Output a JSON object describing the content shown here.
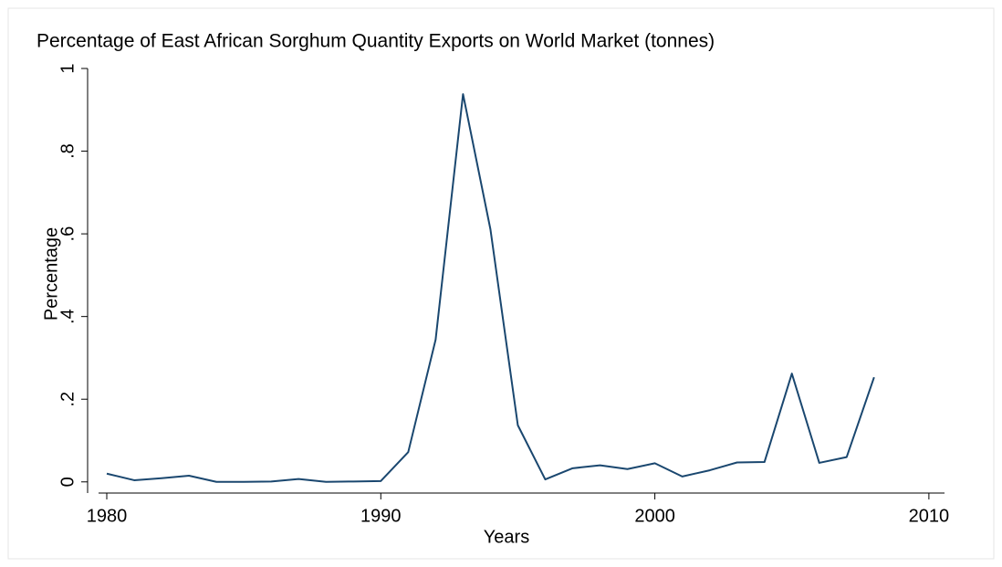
{
  "chart_data": {
    "type": "line",
    "title": "Percentage of East African Sorghum Quantity  Exports on World Market (tonnes)",
    "x_label": "Years",
    "y_label": "Percentage",
    "x": [
      1980,
      1981,
      1982,
      1983,
      1984,
      1985,
      1986,
      1987,
      1988,
      1989,
      1990,
      1991,
      1992,
      1993,
      1994,
      1995,
      1996,
      1997,
      1998,
      1999,
      2000,
      2001,
      2002,
      2003,
      2004,
      2005,
      2006,
      2007,
      2008
    ],
    "series": [
      {
        "name": "Percentage",
        "color": "#1a476f",
        "values": [
          0.02,
          0.004,
          0.009,
          0.015,
          0.0,
          0.0,
          0.001,
          0.007,
          0.0,
          0.001,
          0.002,
          0.072,
          0.344,
          0.938,
          0.611,
          0.137,
          0.006,
          0.033,
          0.04,
          0.031,
          0.045,
          0.013,
          0.028,
          0.047,
          0.048,
          0.262,
          0.046,
          0.06,
          0.253
        ]
      }
    ],
    "xlim": [
      1979.7,
      2010.57
    ],
    "ylim": [
      -0.027,
      1.0
    ],
    "xticks": [
      1980,
      1990,
      2000,
      2010
    ],
    "yticks": [
      0,
      {
        "value": 0.2,
        "label": ".2"
      },
      {
        "value": 0.4,
        "label": ".4"
      },
      {
        "value": 0.6,
        "label": ".6"
      },
      {
        "value": 0.8,
        "label": ".8"
      },
      1
    ],
    "grid": false
  }
}
